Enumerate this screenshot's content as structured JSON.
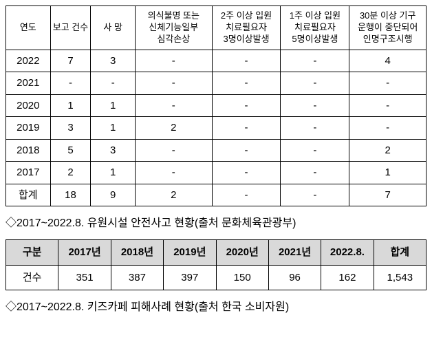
{
  "table1": {
    "columns": [
      "연도",
      "보고\n건수",
      "사 망",
      "의식불명 또는\n신체기능일부\n심각손상",
      "2주 이상 입원\n치료필요자\n3명이상발생",
      "1주 이상 입원\n치료필요자\n5명이상발생",
      "30분 이상 기구\n운행이 중단되어\n인명구조시행"
    ],
    "col_widths": [
      "11%",
      "10%",
      "11%",
      "19%",
      "17%",
      "17%",
      "19%"
    ],
    "rows": [
      [
        "2022",
        "7",
        "3",
        "-",
        "-",
        "-",
        "4"
      ],
      [
        "2021",
        "-",
        "-",
        "-",
        "-",
        "-",
        "-"
      ],
      [
        "2020",
        "1",
        "1",
        "-",
        "-",
        "-",
        "-"
      ],
      [
        "2019",
        "3",
        "1",
        "2",
        "-",
        "-",
        "-"
      ],
      [
        "2018",
        "5",
        "3",
        "-",
        "-",
        "-",
        "2"
      ],
      [
        "2017",
        "2",
        "1",
        "-",
        "-",
        "-",
        "1"
      ],
      [
        "합계",
        "18",
        "9",
        "2",
        "-",
        "-",
        "7"
      ]
    ]
  },
  "caption1": "◇2017~2022.8.  유원시설  안전사고  현황(출처  문화체육관광부)",
  "table2": {
    "columns": [
      "구분",
      "2017년",
      "2018년",
      "2019년",
      "2020년",
      "2021년",
      "2022.8.",
      "합계"
    ],
    "row_label": "건수",
    "values": [
      "351",
      "387",
      "397",
      "150",
      "96",
      "162",
      "1,543"
    ]
  },
  "caption2": "◇2017~2022.8.  키즈카페  피해사례  현황(출처  한국 소비자원)"
}
